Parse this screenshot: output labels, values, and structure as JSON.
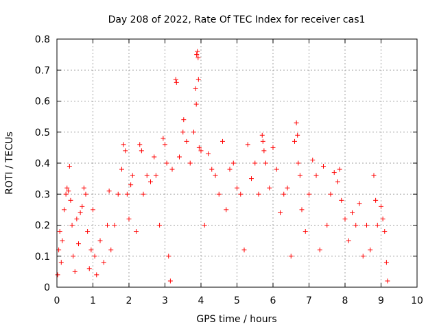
{
  "chart_data": {
    "type": "scatter",
    "title": "Day 208 of 2022, Rate Of TEC Index for receiver cas1",
    "xlabel": "GPS time / hours",
    "ylabel": "ROTI / TECUs",
    "xlim": [
      0,
      10
    ],
    "ylim": [
      0,
      0.8
    ],
    "x_ticks": [
      "0",
      "1",
      "2",
      "3",
      "4",
      "5",
      "6",
      "7",
      "8",
      "9",
      "10"
    ],
    "y_ticks": [
      "0",
      "0.1",
      "0.2",
      "0.3",
      "0.4",
      "0.5",
      "0.6",
      "0.7",
      "0.8"
    ],
    "grid": true,
    "marker": "+",
    "color": "#ff0000",
    "series": [
      {
        "values": [
          {
            "x": 0.02,
            "y": 0.04
          },
          {
            "x": 0.05,
            "y": 0.12
          },
          {
            "x": 0.08,
            "y": 0.18
          },
          {
            "x": 0.12,
            "y": 0.08
          },
          {
            "x": 0.15,
            "y": 0.15
          },
          {
            "x": 0.2,
            "y": 0.25
          },
          {
            "x": 0.25,
            "y": 0.3
          },
          {
            "x": 0.28,
            "y": 0.32
          },
          {
            "x": 0.32,
            "y": 0.31
          },
          {
            "x": 0.35,
            "y": 0.39
          },
          {
            "x": 0.38,
            "y": 0.28
          },
          {
            "x": 0.42,
            "y": 0.2
          },
          {
            "x": 0.45,
            "y": 0.1
          },
          {
            "x": 0.5,
            "y": 0.05
          },
          {
            "x": 0.55,
            "y": 0.22
          },
          {
            "x": 0.6,
            "y": 0.14
          },
          {
            "x": 0.65,
            "y": 0.24
          },
          {
            "x": 0.7,
            "y": 0.26
          },
          {
            "x": 0.75,
            "y": 0.32
          },
          {
            "x": 0.8,
            "y": 0.3
          },
          {
            "x": 0.85,
            "y": 0.18
          },
          {
            "x": 0.9,
            "y": 0.06
          },
          {
            "x": 0.95,
            "y": 0.12
          },
          {
            "x": 1.0,
            "y": 0.25
          },
          {
            "x": 1.05,
            "y": 0.1
          },
          {
            "x": 1.1,
            "y": 0.04
          },
          {
            "x": 1.2,
            "y": 0.15
          },
          {
            "x": 1.3,
            "y": 0.08
          },
          {
            "x": 1.4,
            "y": 0.2
          },
          {
            "x": 1.45,
            "y": 0.31
          },
          {
            "x": 1.5,
            "y": 0.12
          },
          {
            "x": 1.6,
            "y": 0.2
          },
          {
            "x": 1.7,
            "y": 0.3
          },
          {
            "x": 1.8,
            "y": 0.38
          },
          {
            "x": 1.85,
            "y": 0.46
          },
          {
            "x": 1.9,
            "y": 0.44
          },
          {
            "x": 1.95,
            "y": 0.3
          },
          {
            "x": 2.0,
            "y": 0.22
          },
          {
            "x": 2.05,
            "y": 0.33
          },
          {
            "x": 2.1,
            "y": 0.36
          },
          {
            "x": 2.2,
            "y": 0.18
          },
          {
            "x": 2.3,
            "y": 0.46
          },
          {
            "x": 2.35,
            "y": 0.44
          },
          {
            "x": 2.4,
            "y": 0.3
          },
          {
            "x": 2.5,
            "y": 0.36
          },
          {
            "x": 2.6,
            "y": 0.34
          },
          {
            "x": 2.7,
            "y": 0.42
          },
          {
            "x": 2.75,
            "y": 0.36
          },
          {
            "x": 2.85,
            "y": 0.2
          },
          {
            "x": 2.95,
            "y": 0.48
          },
          {
            "x": 3.0,
            "y": 0.46
          },
          {
            "x": 3.05,
            "y": 0.4
          },
          {
            "x": 3.1,
            "y": 0.1
          },
          {
            "x": 3.15,
            "y": 0.02
          },
          {
            "x": 3.2,
            "y": 0.38
          },
          {
            "x": 3.3,
            "y": 0.67
          },
          {
            "x": 3.32,
            "y": 0.66
          },
          {
            "x": 3.4,
            "y": 0.42
          },
          {
            "x": 3.5,
            "y": 0.5
          },
          {
            "x": 3.52,
            "y": 0.54
          },
          {
            "x": 3.6,
            "y": 0.47
          },
          {
            "x": 3.7,
            "y": 0.4
          },
          {
            "x": 3.8,
            "y": 0.5
          },
          {
            "x": 3.85,
            "y": 0.64
          },
          {
            "x": 3.87,
            "y": 0.59
          },
          {
            "x": 3.88,
            "y": 0.75
          },
          {
            "x": 3.9,
            "y": 0.76
          },
          {
            "x": 3.92,
            "y": 0.74
          },
          {
            "x": 3.93,
            "y": 0.67
          },
          {
            "x": 3.95,
            "y": 0.45
          },
          {
            "x": 4.0,
            "y": 0.44
          },
          {
            "x": 4.1,
            "y": 0.2
          },
          {
            "x": 4.2,
            "y": 0.43
          },
          {
            "x": 4.3,
            "y": 0.38
          },
          {
            "x": 4.4,
            "y": 0.36
          },
          {
            "x": 4.5,
            "y": 0.3
          },
          {
            "x": 4.6,
            "y": 0.47
          },
          {
            "x": 4.7,
            "y": 0.25
          },
          {
            "x": 4.8,
            "y": 0.38
          },
          {
            "x": 4.9,
            "y": 0.4
          },
          {
            "x": 5.0,
            "y": 0.32
          },
          {
            "x": 5.1,
            "y": 0.3
          },
          {
            "x": 5.2,
            "y": 0.12
          },
          {
            "x": 5.3,
            "y": 0.46
          },
          {
            "x": 5.4,
            "y": 0.35
          },
          {
            "x": 5.5,
            "y": 0.4
          },
          {
            "x": 5.6,
            "y": 0.3
          },
          {
            "x": 5.7,
            "y": 0.49
          },
          {
            "x": 5.72,
            "y": 0.47
          },
          {
            "x": 5.75,
            "y": 0.44
          },
          {
            "x": 5.8,
            "y": 0.4
          },
          {
            "x": 5.9,
            "y": 0.32
          },
          {
            "x": 6.0,
            "y": 0.45
          },
          {
            "x": 6.1,
            "y": 0.38
          },
          {
            "x": 6.2,
            "y": 0.24
          },
          {
            "x": 6.3,
            "y": 0.3
          },
          {
            "x": 6.4,
            "y": 0.32
          },
          {
            "x": 6.5,
            "y": 0.1
          },
          {
            "x": 6.6,
            "y": 0.47
          },
          {
            "x": 6.65,
            "y": 0.53
          },
          {
            "x": 6.68,
            "y": 0.49
          },
          {
            "x": 6.7,
            "y": 0.4
          },
          {
            "x": 6.75,
            "y": 0.36
          },
          {
            "x": 6.8,
            "y": 0.25
          },
          {
            "x": 6.9,
            "y": 0.18
          },
          {
            "x": 7.0,
            "y": 0.3
          },
          {
            "x": 7.1,
            "y": 0.41
          },
          {
            "x": 7.2,
            "y": 0.36
          },
          {
            "x": 7.3,
            "y": 0.12
          },
          {
            "x": 7.4,
            "y": 0.39
          },
          {
            "x": 7.5,
            "y": 0.2
          },
          {
            "x": 7.6,
            "y": 0.3
          },
          {
            "x": 7.7,
            "y": 0.37
          },
          {
            "x": 7.8,
            "y": 0.34
          },
          {
            "x": 7.85,
            "y": 0.38
          },
          {
            "x": 7.9,
            "y": 0.28
          },
          {
            "x": 8.0,
            "y": 0.22
          },
          {
            "x": 8.1,
            "y": 0.15
          },
          {
            "x": 8.2,
            "y": 0.24
          },
          {
            "x": 8.3,
            "y": 0.2
          },
          {
            "x": 8.4,
            "y": 0.27
          },
          {
            "x": 8.5,
            "y": 0.1
          },
          {
            "x": 8.6,
            "y": 0.2
          },
          {
            "x": 8.7,
            "y": 0.12
          },
          {
            "x": 8.8,
            "y": 0.36
          },
          {
            "x": 8.85,
            "y": 0.28
          },
          {
            "x": 8.9,
            "y": 0.2
          },
          {
            "x": 9.0,
            "y": 0.26
          },
          {
            "x": 9.05,
            "y": 0.22
          },
          {
            "x": 9.1,
            "y": 0.18
          },
          {
            "x": 9.15,
            "y": 0.08
          },
          {
            "x": 9.18,
            "y": 0.02
          }
        ]
      }
    ]
  }
}
